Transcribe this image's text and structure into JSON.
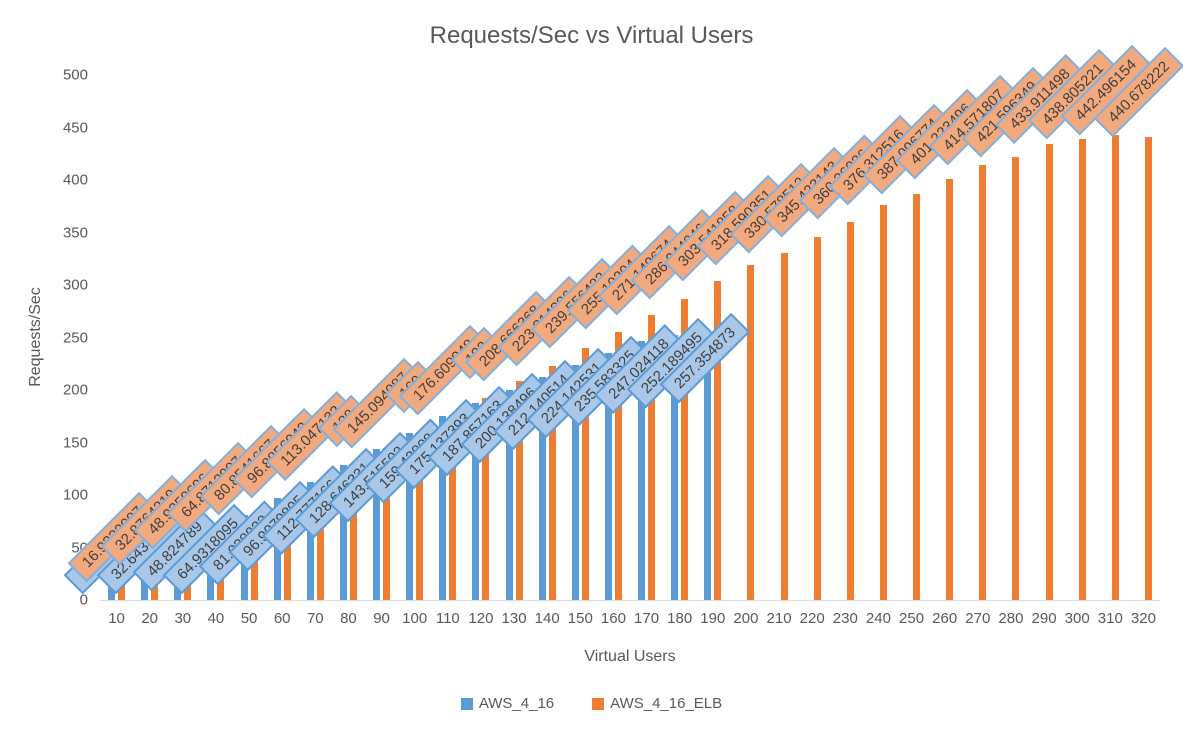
{
  "chart_data": {
    "type": "bar",
    "title": "Requests/Sec vs Virtual Users",
    "xlabel": "Virtual Users",
    "ylabel": "Requests/Sec",
    "ylim": [
      0,
      500
    ],
    "ytick_step": 50,
    "grid": false,
    "legend_position": "bottom",
    "categories": [
      10,
      20,
      30,
      40,
      50,
      60,
      70,
      80,
      90,
      100,
      110,
      120,
      130,
      140,
      150,
      160,
      170,
      180,
      190,
      200,
      210,
      220,
      230,
      240,
      250,
      260,
      270,
      280,
      290,
      300,
      310,
      320
    ],
    "series": [
      {
        "name": "AWS_4_16",
        "color": "#5b9bd5",
        "label_fill": "#a9c7e8",
        "label_border": "#5b9bd5",
        "values": [
          16.1060386,
          32.6438072,
          48.824789,
          64.9318095,
          81.038832,
          96.9079895,
          112.777166,
          128.646331,
          143.515502,
          159.43008,
          175.137393,
          187.857163,
          200.138496,
          212.140514,
          224.142531,
          235.583325,
          247.024118,
          252.189495,
          257.354873
        ],
        "labels": [
          "16.1060386",
          "32.6438072",
          "48.824789",
          "64.9318095",
          "81.038832",
          "96.9079895",
          "112.777166",
          "128.646331",
          "143.515502",
          "159.43008",
          "175.137393",
          "187.857163",
          "200.138496",
          "212.140514",
          "224.142531",
          "235.583325",
          "247.024118",
          "252.189495",
          "257.354873"
        ]
      },
      {
        "name": "AWS_4_16_ELB",
        "color": "#ed7d31",
        "label_fill": "#f3a97e",
        "label_border": "#7eb1e0",
        "values": [
          16.9233907,
          32.8764219,
          48.9350696,
          64.8712907,
          80.8541667,
          96.8856042,
          113.047132,
          128,
          145.094087,
          160,
          176.609948,
          192,
          208.666368,
          223.214286,
          239.556423,
          255.10204,
          271.149674,
          286.944046,
          303.541858,
          318.590351,
          330.578512,
          345.423143,
          360.36036,
          376.312516,
          387.096774,
          401.223496,
          414.571807,
          421.596349,
          433.911498,
          438.805221,
          442.496154,
          440.678222
        ],
        "labels": [
          "16.9233907",
          "32.8764219",
          "48.9350696",
          "64.8712907",
          "80.8541667",
          "96.8856042",
          "113.047132",
          "128",
          "145.094087",
          "160",
          "176.609948",
          "192",
          "208.666368",
          "223.214286",
          "239.556423",
          "255.10204",
          "271.149674",
          "286.944046",
          "303.541858",
          "318.590351",
          "330.578512",
          "345.423143",
          "360.36036",
          "376.312516",
          "387.096774",
          "401.223496",
          "414.571807",
          "421.596349",
          "433.911498",
          "438.805221",
          "442.496154",
          "440.678222"
        ]
      }
    ],
    "ytick_labels": [
      "0",
      "50",
      "100",
      "150",
      "200",
      "250",
      "300",
      "350",
      "400",
      "450",
      "500"
    ]
  }
}
